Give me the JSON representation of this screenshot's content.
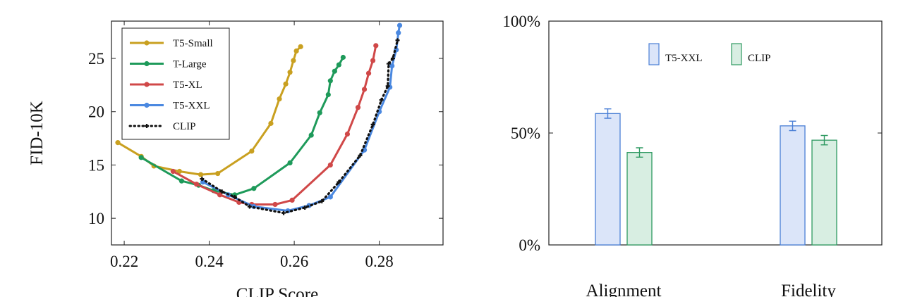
{
  "chart_data": [
    {
      "type": "line",
      "xlabel": "CLIP Score",
      "ylabel": "FID-10K",
      "xlim": [
        0.217,
        0.295
      ],
      "ylim": [
        7.5,
        28.5
      ],
      "x_ticks": [
        "0.22",
        "0.24",
        "0.26",
        "0.28"
      ],
      "x_tick_values": [
        0.22,
        0.24,
        0.26,
        0.28
      ],
      "y_ticks": [
        "10",
        "15",
        "20",
        "25"
      ],
      "y_tick_values": [
        10,
        15,
        20,
        25
      ],
      "legend_position": "top-left",
      "grid": false,
      "series": [
        {
          "name": "T5-Small",
          "color": "#c9a020",
          "style": "solid",
          "points": [
            [
              0.2185,
              17.1
            ],
            [
              0.224,
              15.8
            ],
            [
              0.227,
              14.9
            ],
            [
              0.233,
              14.4
            ],
            [
              0.238,
              14.1
            ],
            [
              0.242,
              14.2
            ],
            [
              0.25,
              16.3
            ],
            [
              0.2545,
              18.9
            ],
            [
              0.2565,
              21.2
            ],
            [
              0.258,
              22.6
            ],
            [
              0.259,
              23.7
            ],
            [
              0.2598,
              24.8
            ],
            [
              0.2605,
              25.7
            ],
            [
              0.2615,
              26.1
            ]
          ]
        },
        {
          "name": "T-Large",
          "color": "#1e9a5a",
          "style": "solid",
          "points": [
            [
              0.224,
              15.7
            ],
            [
              0.2335,
              13.5
            ],
            [
              0.2375,
              13.1
            ],
            [
              0.241,
              12.6
            ],
            [
              0.246,
              12.2
            ],
            [
              0.2505,
              12.8
            ],
            [
              0.259,
              15.2
            ],
            [
              0.264,
              17.8
            ],
            [
              0.266,
              19.9
            ],
            [
              0.268,
              21.6
            ],
            [
              0.2685,
              22.9
            ],
            [
              0.2695,
              23.8
            ],
            [
              0.2705,
              24.4
            ],
            [
              0.2715,
              25.1
            ]
          ]
        },
        {
          "name": "T5-XL",
          "color": "#d04848",
          "style": "solid",
          "points": [
            [
              0.2315,
              14.4
            ],
            [
              0.237,
              13.2
            ],
            [
              0.2425,
              12.2
            ],
            [
              0.247,
              11.5
            ],
            [
              0.25,
              11.3
            ],
            [
              0.2555,
              11.3
            ],
            [
              0.2595,
              11.7
            ],
            [
              0.2685,
              15.0
            ],
            [
              0.2725,
              17.9
            ],
            [
              0.275,
              20.4
            ],
            [
              0.2765,
              22.1
            ],
            [
              0.2775,
              23.6
            ],
            [
              0.2785,
              24.8
            ],
            [
              0.2792,
              26.2
            ]
          ]
        },
        {
          "name": "T5-XXL",
          "color": "#4a88e0",
          "style": "solid",
          "points": [
            [
              0.2385,
              13.4
            ],
            [
              0.2445,
              12.2
            ],
            [
              0.2505,
              11.1
            ],
            [
              0.2585,
              10.7
            ],
            [
              0.2635,
              11.2
            ],
            [
              0.2685,
              12.0
            ],
            [
              0.2765,
              16.4
            ],
            [
              0.28,
              20.0
            ],
            [
              0.2825,
              22.3
            ],
            [
              0.283,
              24.3
            ],
            [
              0.284,
              25.8
            ],
            [
              0.2845,
              27.4
            ],
            [
              0.2848,
              28.1
            ]
          ]
        },
        {
          "name": "CLIP",
          "color": "#111111",
          "style": "dotted",
          "points": [
            [
              0.2383,
              13.7
            ],
            [
              0.243,
              12.5
            ],
            [
              0.246,
              12.0
            ],
            [
              0.2495,
              11.1
            ],
            [
              0.2575,
              10.5
            ],
            [
              0.2625,
              11.0
            ],
            [
              0.2665,
              11.6
            ],
            [
              0.2705,
              13.4
            ],
            [
              0.2755,
              15.9
            ],
            [
              0.2785,
              18.8
            ],
            [
              0.2805,
              21.1
            ],
            [
              0.282,
              22.4
            ],
            [
              0.2822,
              24.5
            ],
            [
              0.2832,
              25.0
            ],
            [
              0.2843,
              26.7
            ]
          ]
        }
      ]
    },
    {
      "type": "bar",
      "categories": [
        "Alignment",
        "Fidelity"
      ],
      "ylim": [
        0,
        100
      ],
      "y_ticks": [
        "0%",
        "50%",
        "100%"
      ],
      "y_tick_values": [
        0,
        50,
        100
      ],
      "legend_position": "top",
      "grid": false,
      "series": [
        {
          "name": "T5-XXL",
          "fill": "#dbe5f9",
          "stroke": "#4a7fd6",
          "values": [
            58.7,
            53.2
          ],
          "error": [
            2.1,
            2.1
          ]
        },
        {
          "name": "CLIP",
          "fill": "#d8eee2",
          "stroke": "#2f9a62",
          "values": [
            41.3,
            46.8
          ],
          "error": [
            2.1,
            2.1
          ]
        }
      ]
    }
  ]
}
